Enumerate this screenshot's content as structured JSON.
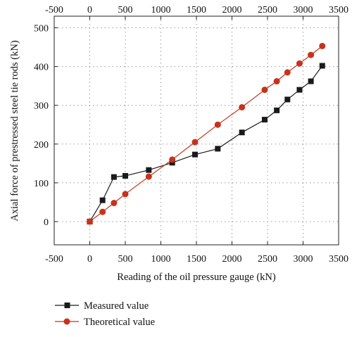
{
  "chart_data": {
    "type": "line",
    "xlabel": "Reading of the oil pressure gauge (kN)",
    "ylabel": "Axial force of prestressed steel tie rods (kN)",
    "xlim": [
      -500,
      3500
    ],
    "ylim": [
      -60,
      530
    ],
    "xticks": [
      -500,
      0,
      500,
      1000,
      1500,
      2000,
      2500,
      3000,
      3500
    ],
    "yticks": [
      0,
      100,
      200,
      300,
      400,
      500
    ],
    "top_axis_ticks": [
      -500,
      0,
      500,
      1000,
      1500,
      2000,
      2500,
      3000,
      3500
    ],
    "grid": "dotted",
    "legend_position": "bottom",
    "series": [
      {
        "name": "Measured value",
        "color": "#1a1a1a",
        "marker": "square",
        "x": [
          0,
          180,
          340,
          500,
          830,
          1160,
          1480,
          1800,
          2140,
          2460,
          2630,
          2780,
          2950,
          3110,
          3270
        ],
        "y": [
          0,
          55,
          115,
          118,
          133,
          152,
          173,
          188,
          230,
          263,
          287,
          315,
          340,
          362,
          402
        ]
      },
      {
        "name": "Theoretical value",
        "color": "#c8321b",
        "marker": "circle",
        "x": [
          0,
          180,
          340,
          500,
          830,
          1160,
          1480,
          1800,
          2140,
          2460,
          2630,
          2780,
          2950,
          3110,
          3270
        ],
        "y": [
          0,
          25,
          48,
          71,
          116,
          160,
          205,
          250,
          295,
          340,
          362,
          385,
          408,
          430,
          453
        ]
      }
    ]
  }
}
